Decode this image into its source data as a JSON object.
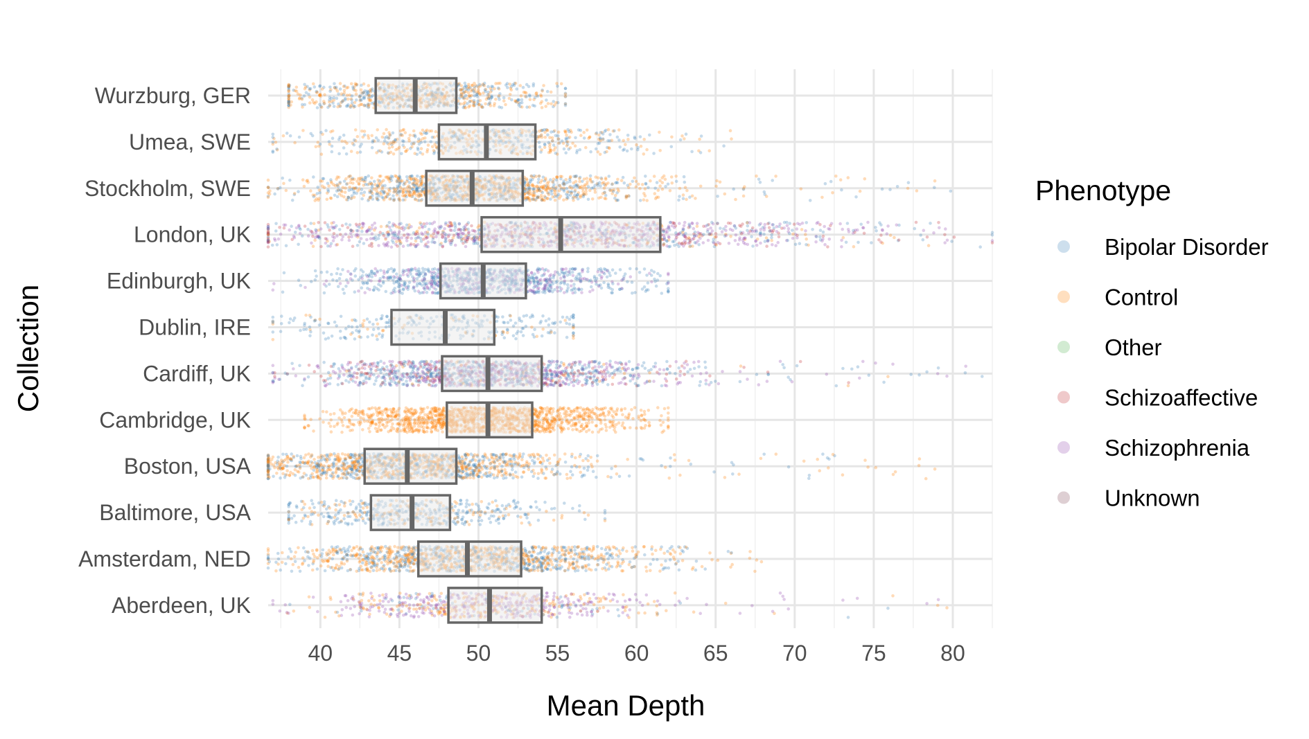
{
  "chart_data": {
    "type": "boxplot",
    "title": "",
    "xlabel": "Mean Depth",
    "ylabel": "Collection",
    "xlim": [
      36.7,
      82.5
    ],
    "x_ticks": [
      40,
      45,
      50,
      55,
      60,
      65,
      70,
      75,
      80
    ],
    "grid": true,
    "legend": {
      "title": "Phenotype",
      "position": "right",
      "entries": [
        {
          "name": "Bipolar Disorder",
          "color": "#377eb8"
        },
        {
          "name": "Control",
          "color": "#ff7f00"
        },
        {
          "name": "Other",
          "color": "#4daf4a"
        },
        {
          "name": "Schizoaffective",
          "color": "#c1272d"
        },
        {
          "name": "Schizophrenia",
          "color": "#8e44ad"
        },
        {
          "name": "Unknown",
          "color": "#7b3f4e"
        }
      ]
    },
    "categories": [
      "Wurzburg, GER",
      "Umea, SWE",
      "Stockholm, SWE",
      "London, UK",
      "Edinburgh, UK",
      "Dublin, IRE",
      "Cardiff, UK",
      "Cambridge, UK",
      "Boston, USA",
      "Baltimore, USA",
      "Amsterdam, NED",
      "Aberdeen, UK"
    ],
    "boxes": [
      {
        "category": "Wurzburg, GER",
        "q1": 43.5,
        "median": 46.0,
        "q3": 48.6,
        "range": [
          38,
          55.5
        ],
        "n": 800,
        "mix": {
          "Bipolar Disorder": 0.45,
          "Control": 0.55
        }
      },
      {
        "category": "Umea, SWE",
        "q1": 47.5,
        "median": 50.5,
        "q3": 53.6,
        "range": [
          37,
          66
        ],
        "n": 600,
        "mix": {
          "Bipolar Disorder": 0.45,
          "Control": 0.55
        }
      },
      {
        "category": "Stockholm, SWE",
        "q1": 46.7,
        "median": 49.6,
        "q3": 52.8,
        "range": [
          36.7,
          80
        ],
        "n": 3000,
        "mix": {
          "Bipolar Disorder": 0.4,
          "Control": 0.6
        }
      },
      {
        "category": "London, UK",
        "q1": 50.2,
        "median": 55.2,
        "q3": 61.5,
        "range": [
          36.7,
          82.5
        ],
        "n": 2800,
        "mix": {
          "Schizophrenia": 0.4,
          "Bipolar Disorder": 0.3,
          "Schizoaffective": 0.2,
          "Control": 0.1
        }
      },
      {
        "category": "Edinburgh, UK",
        "q1": 47.6,
        "median": 50.3,
        "q3": 53.0,
        "range": [
          37,
          62
        ],
        "n": 1000,
        "mix": {
          "Bipolar Disorder": 0.7,
          "Schizophrenia": 0.3
        }
      },
      {
        "category": "Dublin, IRE",
        "q1": 44.5,
        "median": 47.9,
        "q3": 51.0,
        "range": [
          37,
          56
        ],
        "n": 300,
        "mix": {
          "Bipolar Disorder": 0.85,
          "Control": 0.15
        }
      },
      {
        "category": "Cardiff, UK",
        "q1": 47.7,
        "median": 50.6,
        "q3": 54.0,
        "range": [
          37,
          82
        ],
        "n": 3000,
        "mix": {
          "Bipolar Disorder": 0.45,
          "Schizophrenia": 0.35,
          "Schizoaffective": 0.15,
          "Control": 0.05
        }
      },
      {
        "category": "Cambridge, UK",
        "q1": 48.0,
        "median": 50.6,
        "q3": 53.4,
        "range": [
          39,
          62
        ],
        "n": 2500,
        "mix": {
          "Control": 1.0
        }
      },
      {
        "category": "Boston, USA",
        "q1": 42.8,
        "median": 45.5,
        "q3": 48.6,
        "range": [
          36.7,
          79
        ],
        "n": 3500,
        "mix": {
          "Control": 0.55,
          "Bipolar Disorder": 0.45
        }
      },
      {
        "category": "Baltimore, USA",
        "q1": 43.2,
        "median": 45.8,
        "q3": 48.2,
        "range": [
          38,
          58
        ],
        "n": 500,
        "mix": {
          "Bipolar Disorder": 0.7,
          "Control": 0.3
        }
      },
      {
        "category": "Amsterdam, NED",
        "q1": 46.2,
        "median": 49.3,
        "q3": 52.7,
        "range": [
          36.7,
          68
        ],
        "n": 2500,
        "mix": {
          "Control": 0.55,
          "Bipolar Disorder": 0.45
        }
      },
      {
        "category": "Aberdeen, UK",
        "q1": 48.1,
        "median": 50.7,
        "q3": 54.0,
        "range": [
          37,
          82
        ],
        "n": 700,
        "mix": {
          "Schizophrenia": 0.5,
          "Control": 0.4,
          "Bipolar Disorder": 0.1
        }
      }
    ]
  }
}
